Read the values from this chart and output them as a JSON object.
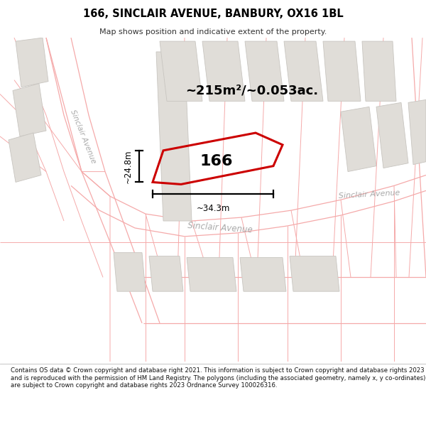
{
  "title": "166, SINCLAIR AVENUE, BANBURY, OX16 1BL",
  "subtitle": "Map shows position and indicative extent of the property.",
  "area_label": "~215m²/~0.053ac.",
  "plot_number": "166",
  "dim_horizontal": "~34.3m",
  "dim_vertical": "~24.8m",
  "footer": "Contains OS data © Crown copyright and database right 2021. This information is subject to Crown copyright and database rights 2023 and is reproduced with the permission of HM Land Registry. The polygons (including the associated geometry, namely x, y co-ordinates) are subject to Crown copyright and database rights 2023 Ordnance Survey 100026316.",
  "bg_color": "#f2f0ed",
  "title_color": "#000000",
  "subtitle_color": "#333333",
  "footer_color": "#111111",
  "red_plot_color": "#cc0000",
  "road_label_color": "#aaaaaa",
  "building_fill": "#e0ddd8",
  "building_stroke": "#c8c5c0",
  "road_line_color": "#f5aaaa",
  "road_line_lw": 0.9
}
